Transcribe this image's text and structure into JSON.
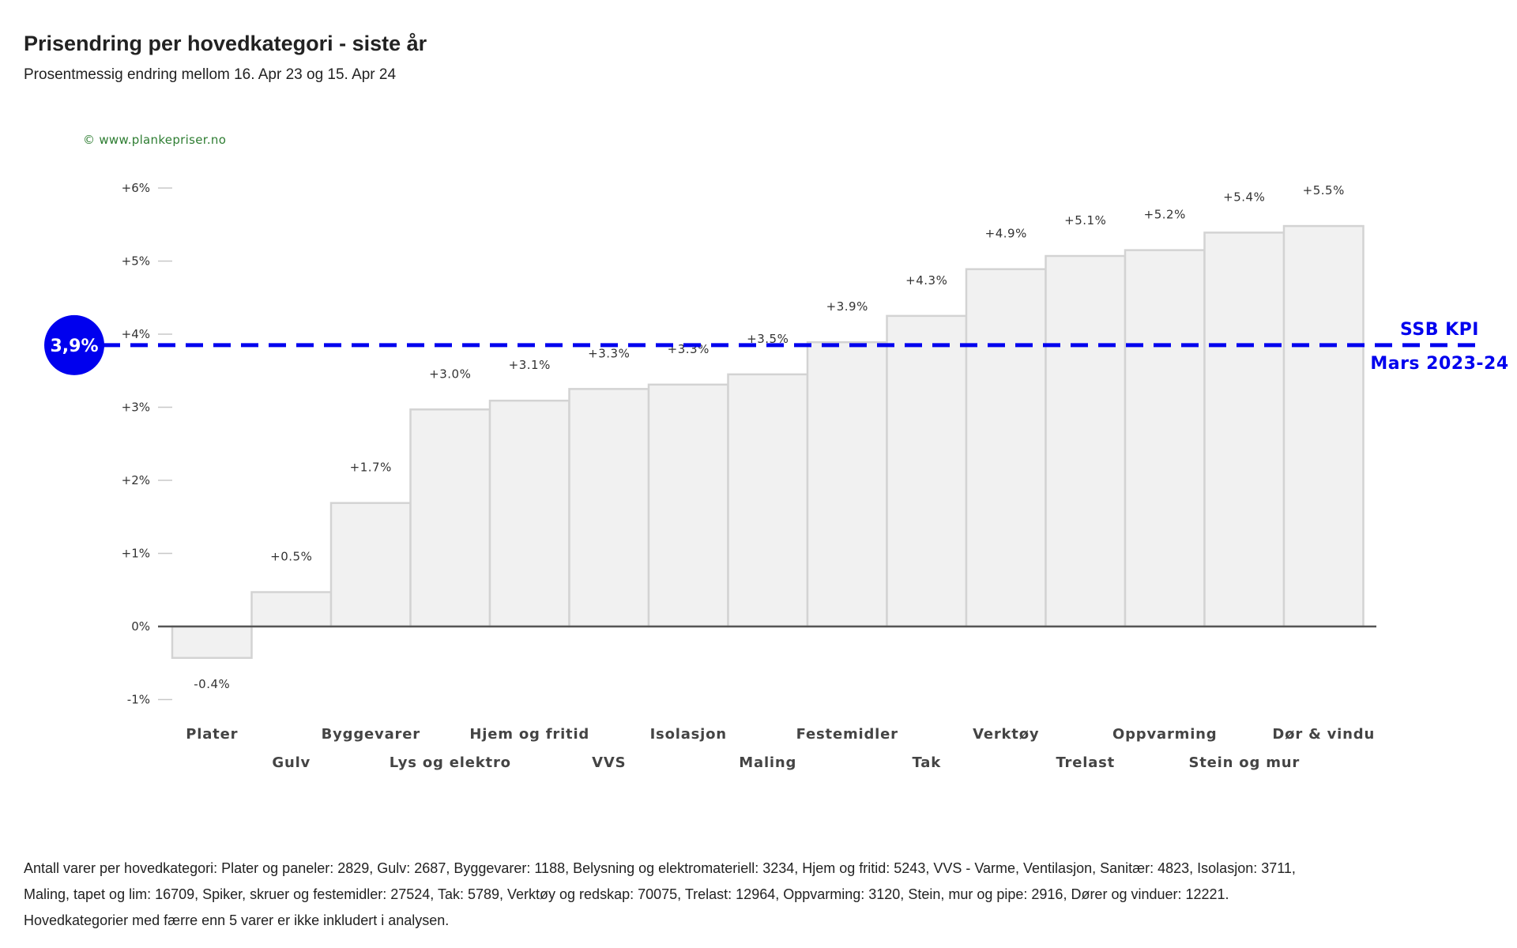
{
  "header": {
    "title": "Prisendring per hovedkategori - siste år",
    "subtitle": "Prosentmessig endring mellom 16. Apr 23 og 15. Apr 24",
    "copyright": "© www.plankepriser.no"
  },
  "chart_data": {
    "type": "bar",
    "categories": [
      "Plater",
      "Gulv",
      "Byggevarer",
      "Lys og elektro",
      "Hjem og fritid",
      "VVS",
      "Isolasjon",
      "Maling",
      "Festemidler",
      "Tak",
      "Verktøy",
      "Trelast",
      "Oppvarming",
      "Stein og mur",
      "Dør & vindu"
    ],
    "values": [
      -0.43,
      0.47,
      1.69,
      2.97,
      3.09,
      3.25,
      3.31,
      3.45,
      3.89,
      4.25,
      4.89,
      5.07,
      5.15,
      5.39,
      5.48
    ],
    "value_labels": [
      "-0.4%",
      "+0.5%",
      "+1.7%",
      "+3.0%",
      "+3.1%",
      "+3.3%",
      "+3.3%",
      "+3.5%",
      "+3.9%",
      "+4.3%",
      "+4.9%",
      "+5.1%",
      "+5.2%",
      "+5.4%",
      "+5.5%"
    ],
    "y_ticks": [
      -1,
      0,
      1,
      2,
      3,
      4,
      5,
      6
    ],
    "y_tick_labels": [
      "-1%",
      "0%",
      "+1%",
      "+2%",
      "+3%",
      "+4%",
      "+5%",
      "+6%"
    ],
    "ylim": [
      -1,
      6
    ],
    "bar_fill": "#f1f1f1",
    "bar_stroke": "#d3d3d3",
    "reference_line": {
      "value": 3.85,
      "badge_label": "3,9%",
      "label_line1": "SSB KPI",
      "label_line2": "Mars 2023-24",
      "color": "#0000ee"
    }
  },
  "footer": {
    "text": "Antall varer per hovedkategori: Plater og paneler: 2829, Gulv: 2687, Byggevarer: 1188, Belysning og elektromateriell: 3234, Hjem og fritid: 5243, VVS - Varme, Ventilasjon, Sanitær: 4823, Isolasjon: 3711, Maling, tapet og lim: 16709, Spiker, skruer og festemidler: 27524, Tak: 5789, Verktøy og redskap: 70075, Trelast: 12964, Oppvarming: 3120, Stein, mur og pipe: 2916, Dører og vinduer: 12221. Hovedkategorier med færre enn 5 varer er ikke inkludert i analysen."
  }
}
